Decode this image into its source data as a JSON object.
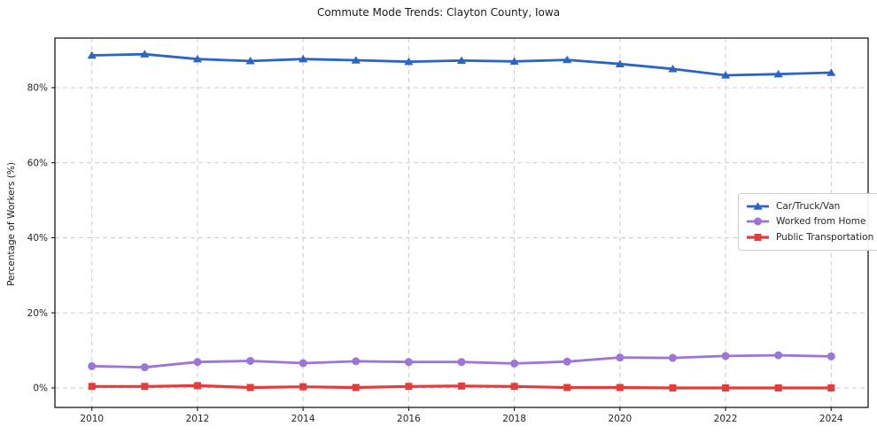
{
  "chart_data": {
    "type": "line",
    "title": "Commute Mode Trends: Clayton County, Iowa",
    "xlabel": "",
    "ylabel": "Percentage of Workers (%)",
    "x": [
      2010,
      2011,
      2012,
      2013,
      2014,
      2015,
      2016,
      2017,
      2018,
      2019,
      2020,
      2021,
      2022,
      2023,
      2024
    ],
    "series": [
      {
        "name": "Car/Truck/Van",
        "color": "#2b64c5",
        "marker": "triangle",
        "line_width": 2.8,
        "values": [
          88.6,
          88.9,
          87.6,
          87.1,
          87.6,
          87.3,
          86.9,
          87.2,
          87.0,
          87.4,
          86.3,
          85.0,
          83.3,
          83.6,
          84.0
        ]
      },
      {
        "name": "Worked from Home",
        "color": "#9d74d8",
        "marker": "circle",
        "line_width": 2.8,
        "values": [
          5.8,
          5.5,
          6.9,
          7.2,
          6.6,
          7.1,
          6.9,
          6.9,
          6.5,
          7.0,
          8.1,
          8.0,
          8.5,
          8.7,
          8.4
        ]
      },
      {
        "name": "Public Transportation",
        "color": "#e23c3c",
        "marker": "square",
        "line_width": 3.2,
        "values": [
          0.4,
          0.4,
          0.6,
          0.1,
          0.3,
          0.1,
          0.4,
          0.5,
          0.4,
          0.1,
          0.1,
          0.0,
          0.0,
          0.0,
          0.0
        ]
      }
    ],
    "xticks": [
      2010,
      2012,
      2014,
      2016,
      2018,
      2020,
      2022,
      2024
    ],
    "yticks": [
      0,
      20,
      40,
      60,
      80
    ],
    "ytick_suffix": "%",
    "xlim": [
      2009.3,
      2024.7
    ],
    "ylim": [
      -5.2,
      93.2
    ],
    "grid": true,
    "legend_position": "center-right",
    "colors": {
      "grid": "#cccccc",
      "axis": "#1a1a1a",
      "tick_label": "#262626",
      "background": "#ffffff"
    }
  }
}
